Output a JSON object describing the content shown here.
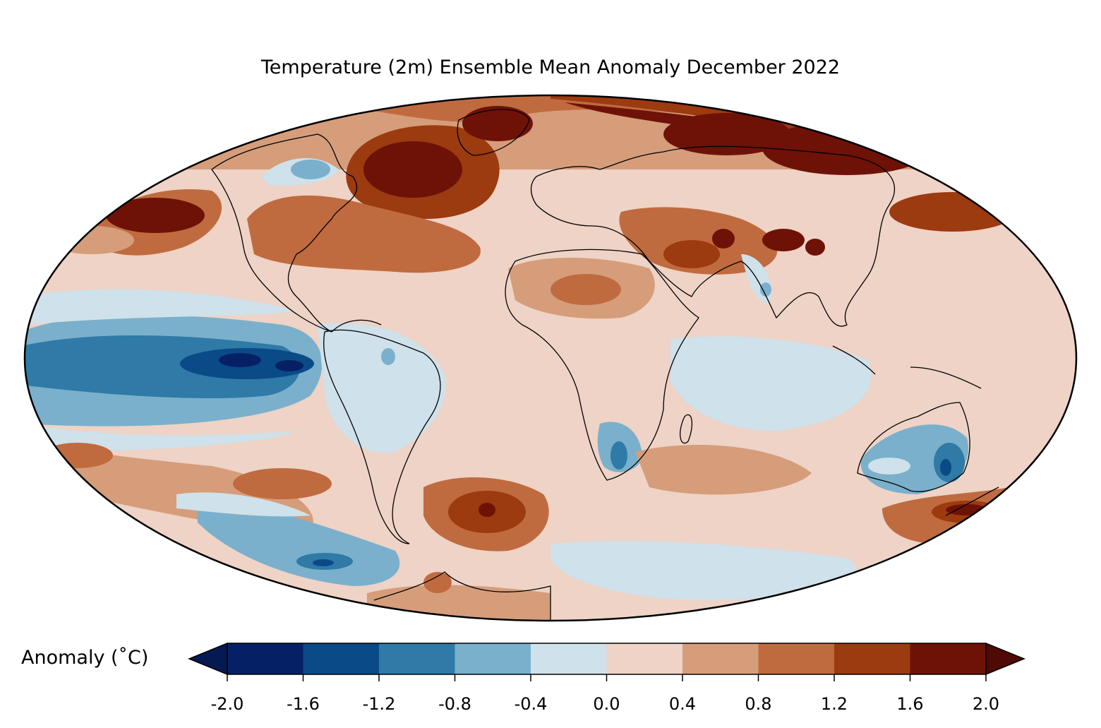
{
  "title": "Temperature (2m) Ensemble Mean Anomaly December 2022",
  "colorbar": {
    "label": "Anomaly (˚C)",
    "ticks": [
      "-2.0",
      "-1.6",
      "-1.2",
      "-0.8",
      "-0.4",
      "0.0",
      "0.4",
      "0.8",
      "1.2",
      "1.6",
      "2.0"
    ],
    "levels": [
      -2.0,
      -1.6,
      -1.2,
      -0.8,
      -0.4,
      0.0,
      0.4,
      0.8,
      1.2,
      1.6,
      2.0
    ],
    "colors": [
      "#062066",
      "#0a4a87",
      "#2f7aa6",
      "#7ab0cc",
      "#cfe1ea",
      "#eed3c6",
      "#d69d7b",
      "#c06b3f",
      "#9c3a10",
      "#6e1208"
    ],
    "under_color": "#051a52",
    "over_color": "#4f0a05"
  },
  "map": {
    "projection": "Mollweide",
    "variable": "2m temperature ensemble mean anomaly",
    "period": "December 2022"
  }
}
